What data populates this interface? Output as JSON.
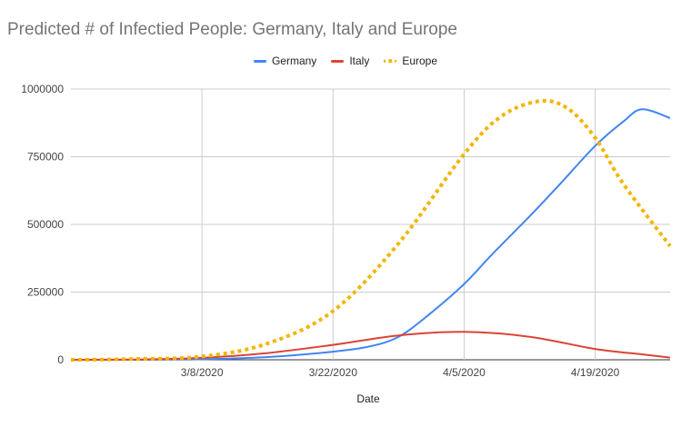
{
  "chart_data": {
    "type": "line",
    "title": "Predicted # of Infectied People: Germany, Italy and Europe",
    "xlabel": "Date",
    "ylabel": "",
    "x_type": "date",
    "x_tick_labels": [
      "3/8/2020",
      "3/22/2020",
      "4/5/2020",
      "4/19/2020"
    ],
    "x_tick_dates": [
      "2020-03-08",
      "2020-03-22",
      "2020-04-05",
      "2020-04-19"
    ],
    "x_range": [
      "2020-02-23",
      "2020-04-27"
    ],
    "y_tick_labels": [
      "0",
      "250000",
      "500000",
      "750000",
      "1000000"
    ],
    "y_ticks": [
      0,
      250000,
      500000,
      750000,
      1000000
    ],
    "ylim": [
      0,
      1000000
    ],
    "grid": true,
    "legend_position": "top",
    "series": [
      {
        "name": "Germany",
        "color": "#4285f4",
        "style": "solid",
        "points": [
          [
            "2020-02-23",
            0
          ],
          [
            "2020-03-01",
            0
          ],
          [
            "2020-03-08",
            2000
          ],
          [
            "2020-03-15",
            10000
          ],
          [
            "2020-03-22",
            30000
          ],
          [
            "2020-03-26",
            50000
          ],
          [
            "2020-03-29",
            85000
          ],
          [
            "2020-04-01",
            160000
          ],
          [
            "2020-04-05",
            280000
          ],
          [
            "2020-04-08",
            390000
          ],
          [
            "2020-04-12",
            530000
          ],
          [
            "2020-04-15",
            640000
          ],
          [
            "2020-04-19",
            790000
          ],
          [
            "2020-04-22",
            880000
          ],
          [
            "2020-04-24",
            925000
          ],
          [
            "2020-04-27",
            893000
          ]
        ]
      },
      {
        "name": "Italy",
        "color": "#db4437",
        "style": "solid",
        "points": [
          [
            "2020-02-23",
            0
          ],
          [
            "2020-03-01",
            1000
          ],
          [
            "2020-03-08",
            7000
          ],
          [
            "2020-03-15",
            25000
          ],
          [
            "2020-03-22",
            55000
          ],
          [
            "2020-03-29",
            90000
          ],
          [
            "2020-04-05",
            103000
          ],
          [
            "2020-04-12",
            85000
          ],
          [
            "2020-04-19",
            40000
          ],
          [
            "2020-04-24",
            20000
          ],
          [
            "2020-04-27",
            8000
          ]
        ]
      },
      {
        "name": "Europe",
        "color": "#f4b400",
        "style": "dotted",
        "points": [
          [
            "2020-02-23",
            0
          ],
          [
            "2020-03-01",
            3000
          ],
          [
            "2020-03-08",
            12000
          ],
          [
            "2020-03-15",
            60000
          ],
          [
            "2020-03-22",
            180000
          ],
          [
            "2020-03-29",
            430000
          ],
          [
            "2020-04-05",
            760000
          ],
          [
            "2020-04-09",
            900000
          ],
          [
            "2020-04-13",
            955000
          ],
          [
            "2020-04-16",
            930000
          ],
          [
            "2020-04-19",
            820000
          ],
          [
            "2020-04-22",
            650000
          ],
          [
            "2020-04-27",
            420000
          ]
        ]
      }
    ]
  }
}
